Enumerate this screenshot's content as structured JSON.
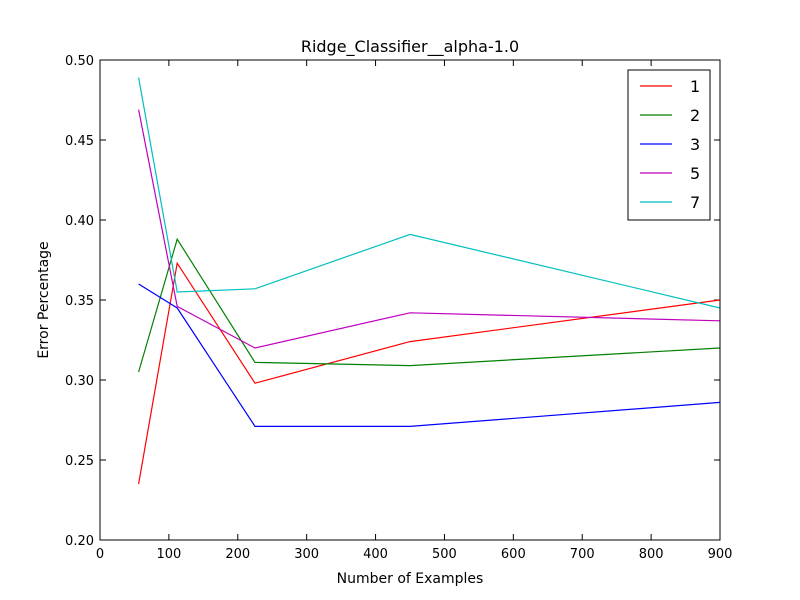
{
  "chart_data": {
    "type": "line",
    "title": "Ridge_Classifier__alpha-1.0",
    "xlabel": "Number of Examples",
    "ylabel": "Error Percentage",
    "xlim": [
      0,
      900
    ],
    "ylim": [
      0.2,
      0.5
    ],
    "xticks": [
      "0",
      "100",
      "200",
      "300",
      "400",
      "500",
      "600",
      "700",
      "800",
      "900"
    ],
    "yticks": [
      "0.20",
      "0.25",
      "0.30",
      "0.35",
      "0.40",
      "0.45",
      "0.50"
    ],
    "grid": false,
    "legend_position": "top-right",
    "x": [
      56,
      112,
      225,
      450,
      900
    ],
    "series": [
      {
        "name": "1",
        "color": "#ff0000",
        "values": [
          0.235,
          0.373,
          0.298,
          0.324,
          0.35
        ]
      },
      {
        "name": "2",
        "color": "#008000",
        "values": [
          0.305,
          0.388,
          0.311,
          0.309,
          0.32
        ]
      },
      {
        "name": "3",
        "color": "#0000ff",
        "values": [
          0.36,
          0.345,
          0.271,
          0.271,
          0.286
        ]
      },
      {
        "name": "5",
        "color": "#bf00bf",
        "values": [
          0.469,
          0.346,
          0.32,
          0.342,
          0.337
        ]
      },
      {
        "name": "7",
        "color": "#00bfbf",
        "values": [
          0.489,
          0.355,
          0.357,
          0.391,
          0.345
        ]
      }
    ]
  }
}
